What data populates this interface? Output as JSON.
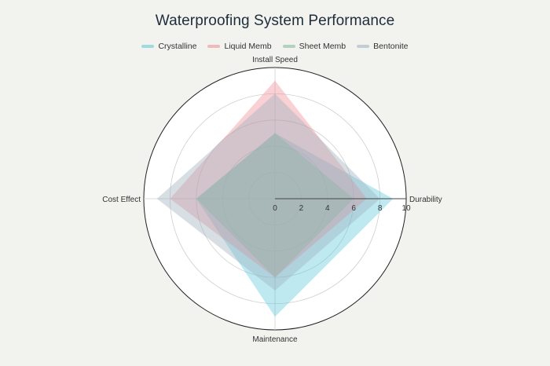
{
  "chart_data": {
    "type": "radar",
    "title": "Waterproofing System Performance",
    "axes": [
      "Durability",
      "Install Speed",
      "Cost Effect",
      "Maintenance"
    ],
    "rlim": [
      0,
      10
    ],
    "ticks": [
      0,
      2,
      4,
      6,
      8,
      10
    ],
    "grid": true,
    "legend_position": "top-center",
    "series": [
      {
        "name": "Crystalline",
        "color": "#5cc8dc",
        "values": [
          9,
          5,
          6,
          9
        ]
      },
      {
        "name": "Liquid Memb",
        "color": "#ef8a90",
        "values": [
          7,
          9,
          8,
          6
        ]
      },
      {
        "name": "Sheet Memb",
        "color": "#7fb894",
        "values": [
          6,
          5,
          6,
          6
        ]
      },
      {
        "name": "Bentonite",
        "color": "#9ab0be",
        "values": [
          8,
          8,
          9,
          7
        ]
      }
    ]
  }
}
